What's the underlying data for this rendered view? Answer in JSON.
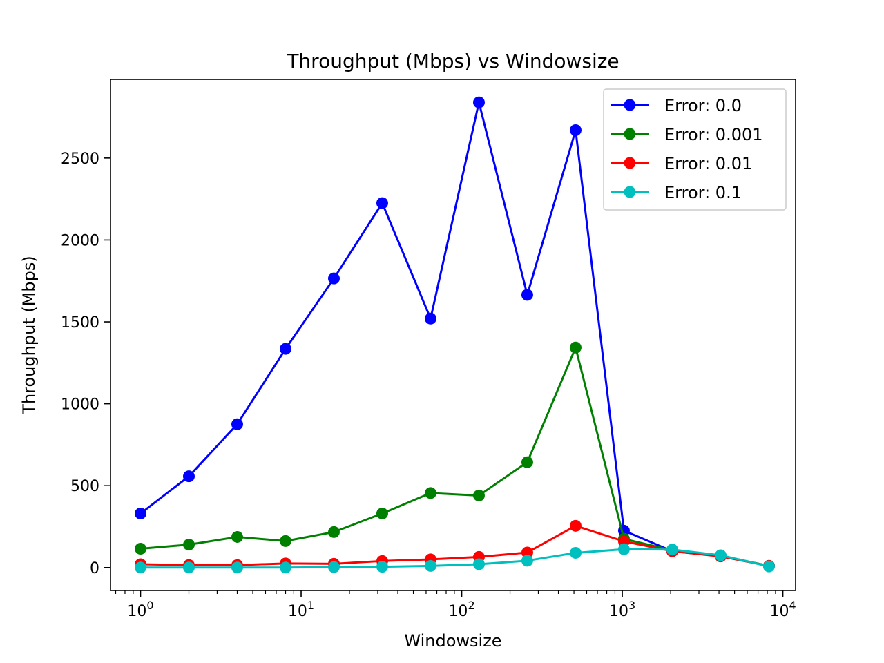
{
  "chart_data": {
    "type": "line",
    "title": "Throughput (Mbps) vs Windowsize",
    "xlabel": "Windowsize",
    "ylabel": "Throughput (Mbps)",
    "xscale": "log",
    "xlim": [
      0.65,
      12000
    ],
    "ylim": [
      -140,
      2980
    ],
    "xticks": [
      {
        "value": 1,
        "base": "10",
        "exp": "0"
      },
      {
        "value": 10,
        "base": "10",
        "exp": "1"
      },
      {
        "value": 100,
        "base": "10",
        "exp": "2"
      },
      {
        "value": 1000,
        "base": "10",
        "exp": "3"
      },
      {
        "value": 10000,
        "base": "10",
        "exp": "4"
      }
    ],
    "yticks": [
      0,
      500,
      1000,
      1500,
      2000,
      2500
    ],
    "grid": false,
    "legend_position": "top-right",
    "x": [
      1,
      2,
      4,
      8,
      16,
      32,
      64,
      128,
      256,
      512,
      1024,
      2048,
      4096,
      8192
    ],
    "series": [
      {
        "name": "Error: 0.0",
        "color": "#0000ff",
        "values": [
          330,
          557,
          875,
          1335,
          1765,
          2225,
          1520,
          2840,
          1665,
          2670,
          225,
          100,
          70,
          10
        ]
      },
      {
        "name": "Error: 0.001",
        "color": "#008000",
        "values": [
          115,
          140,
          187,
          162,
          217,
          330,
          455,
          440,
          643,
          1343,
          175,
          105,
          73,
          10
        ]
      },
      {
        "name": "Error: 0.01",
        "color": "#ff0000",
        "values": [
          20,
          15,
          15,
          25,
          23,
          40,
          50,
          65,
          92,
          255,
          160,
          100,
          68,
          10
        ]
      },
      {
        "name": "Error: 0.1",
        "color": "#00bfbf",
        "values": [
          0,
          0,
          0,
          0,
          3,
          5,
          10,
          20,
          42,
          90,
          112,
          110,
          75,
          7
        ]
      }
    ]
  }
}
